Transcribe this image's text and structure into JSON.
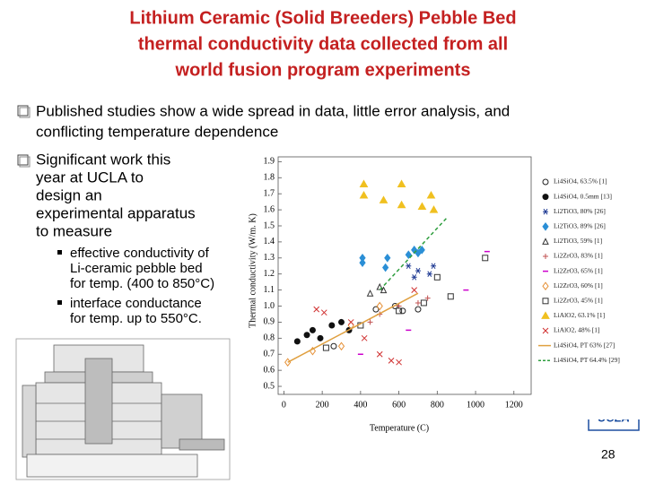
{
  "title_lines": [
    "Lithium Ceramic (Solid Breeders) Pebble Bed",
    "thermal conductivity data collected from all",
    "world fusion program experiments"
  ],
  "bullets": [
    {
      "lines": [
        "Published studies show a wide spread in data, little error analysis, and",
        "conflicting temperature dependence"
      ]
    },
    {
      "lines": [
        "Significant work this",
        "year at UCLA to",
        "design an",
        "experimental apparatus",
        "to measure"
      ],
      "sub_bullets": [
        {
          "lines": [
            "effective conductivity of",
            "Li-ceramic pebble bed",
            "for temp. (400 to 850°C)"
          ]
        },
        {
          "lines": [
            "interface conductance",
            "for temp. up to 550°C."
          ]
        }
      ]
    }
  ],
  "logo": "UCLA",
  "page_number": "28",
  "chart_data": {
    "type": "scatter",
    "xlabel": "Temperature (C)",
    "ylabel": "Thermal conductivity (W/m. K)",
    "xlim": [
      -30,
      1290
    ],
    "xticks": [
      0,
      200,
      400,
      600,
      800,
      1000,
      1200
    ],
    "ylim": [
      0.45,
      1.93
    ],
    "yticks": [
      0.5,
      0.6,
      0.7,
      0.8,
      0.9,
      {
        "value": 1,
        "label": "1.0"
      },
      1.1,
      1.2,
      1.3,
      1.4,
      1.5,
      1.6,
      1.7,
      1.8,
      1.9
    ],
    "grid": false,
    "series": [
      {
        "name": "Li4SiO4, 63.5% [1]",
        "color": "#222222",
        "marker": "open-circle",
        "x": [
          260,
          480,
          580,
          620,
          700
        ],
        "values": [
          0.75,
          0.98,
          1.0,
          0.97,
          0.98
        ]
      },
      {
        "name": "Li4SiO4, 0.5mm [13]",
        "color": "#111111",
        "marker": "filled-circle",
        "x": [
          70,
          120,
          150,
          190,
          250,
          300,
          340
        ],
        "values": [
          0.78,
          0.82,
          0.85,
          0.8,
          0.88,
          0.9,
          0.85
        ]
      },
      {
        "name": "Li2TiO3, 80% [26]",
        "color": "#1f3a93",
        "marker": "asterisk",
        "x": [
          650,
          680,
          700,
          760,
          780
        ],
        "values": [
          1.25,
          1.18,
          1.22,
          1.2,
          1.25
        ]
      },
      {
        "name": "Li2TiO3, 89% [26]",
        "color": "#2b8fd6",
        "marker": "diamond",
        "x": [
          410,
          410,
          530,
          540,
          650,
          680,
          700,
          720
        ],
        "values": [
          1.3,
          1.27,
          1.24,
          1.3,
          1.32,
          1.35,
          1.33,
          1.35
        ]
      },
      {
        "name": "Li2TiO3, 59% [1]",
        "color": "#333333",
        "marker": "open-triangle",
        "x": [
          450,
          500,
          520
        ],
        "values": [
          1.08,
          1.12,
          1.1
        ]
      },
      {
        "name": "Li2ZrO3, 83% [1]",
        "color": "#c05050",
        "marker": "plus",
        "x": [
          450,
          500,
          600,
          700,
          750
        ],
        "values": [
          0.9,
          0.95,
          1.0,
          1.02,
          1.05
        ]
      },
      {
        "name": "Li2ZrO3, 65% [1]",
        "color": "#cc00cc",
        "marker": "dash",
        "x": [
          400,
          650,
          950,
          1060
        ],
        "values": [
          0.7,
          0.85,
          1.1,
          1.34
        ]
      },
      {
        "name": "Li2ZrO3, 60% [1]",
        "color": "#e69138",
        "marker": "open-diamond",
        "x": [
          20,
          150,
          300,
          350,
          500
        ],
        "values": [
          0.65,
          0.72,
          0.75,
          0.88,
          1.0
        ]
      },
      {
        "name": "Li2ZrO3, 45% [1]",
        "color": "#333333",
        "marker": "open-square",
        "x": [
          220,
          400,
          600,
          730,
          800,
          870,
          1050
        ],
        "values": [
          0.74,
          0.88,
          0.97,
          1.02,
          1.18,
          1.06,
          1.3
        ]
      },
      {
        "name": "LiAlO2, 63.1% [1]",
        "color": "#f0c020",
        "marker": "filled-triangle",
        "x": [
          417,
          417,
          520,
          614,
          614,
          721,
          768,
          782
        ],
        "values": [
          1.76,
          1.69,
          1.66,
          1.76,
          1.63,
          1.62,
          1.69,
          1.6
        ]
      },
      {
        "name": "LiAlO2, 48% [1]",
        "color": "#d03030",
        "marker": "x",
        "x": [
          170,
          210,
          350,
          420,
          500,
          560,
          600,
          680
        ],
        "values": [
          0.98,
          0.96,
          0.9,
          0.8,
          0.7,
          0.66,
          0.65,
          1.1
        ]
      },
      {
        "name": "Li4SiO4, PT 63% [27]",
        "color": "#e0a040",
        "marker": "line",
        "x": [
          20,
          700
        ],
        "values": [
          0.65,
          1.08
        ]
      },
      {
        "name": "Li4SiO4, PT 64.4% [29]",
        "color": "#2e9e3e",
        "marker": "dashed-line",
        "x": [
          500,
          850
        ],
        "values": [
          1.1,
          1.55
        ]
      }
    ]
  }
}
